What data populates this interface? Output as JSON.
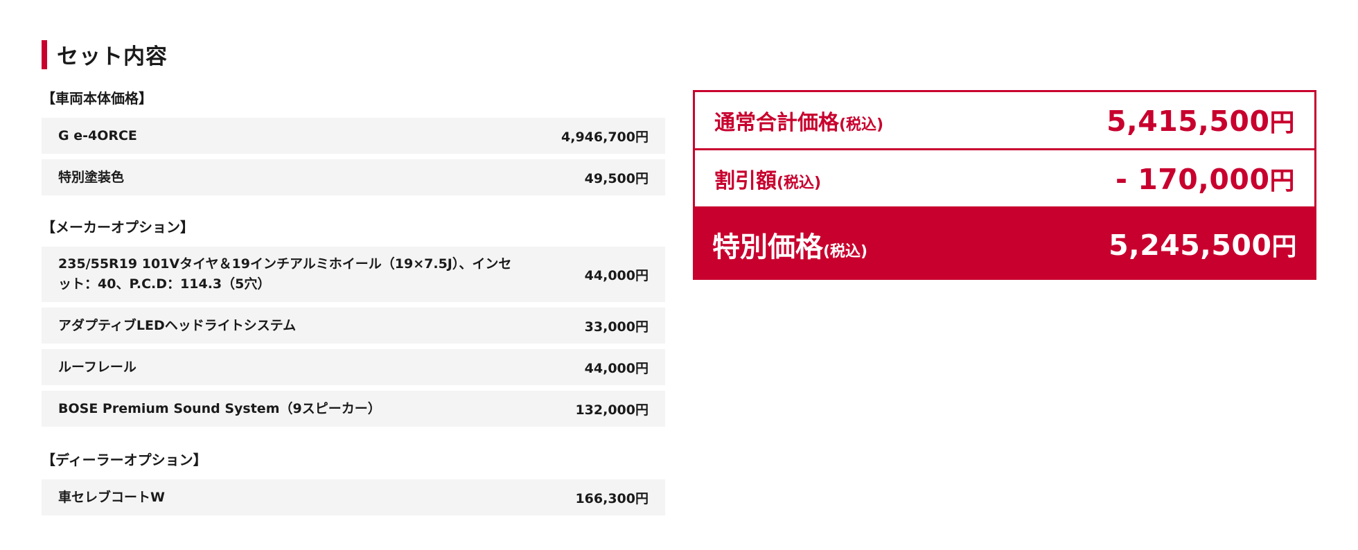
{
  "heading": {
    "title": "セット内容"
  },
  "sections": {
    "body": {
      "label": "【車両本体価格】",
      "items": [
        {
          "name": "G e-4ORCE",
          "price": "4,946,700円"
        },
        {
          "name": "特別塗装色",
          "price": "49,500円"
        }
      ]
    },
    "maker": {
      "label": "【メーカーオプション】",
      "items": [
        {
          "name": "235/55R19 101Vタイヤ＆19インチアルミホイール（19×7.5J）、インセット：40、P.C.D：114.3（5穴）",
          "price": "44,000円"
        },
        {
          "name": "アダプティブLEDヘッドライトシステム",
          "price": "33,000円"
        },
        {
          "name": "ルーフレール",
          "price": "44,000円"
        },
        {
          "name": "BOSE Premium Sound System（9スピーカー）",
          "price": "132,000円"
        }
      ]
    },
    "dealer": {
      "label": "【ディーラーオプション】",
      "items": [
        {
          "name": "車セレブコートW",
          "price": "166,300円"
        }
      ]
    }
  },
  "summary": {
    "regular": {
      "label": "通常合計価格",
      "tax": "(税込)",
      "value": "5,415,500",
      "unit": "円"
    },
    "discount": {
      "label": "割引額",
      "tax": "(税込)",
      "value": "- 170,000",
      "unit": "円"
    },
    "special": {
      "label": "特別価格",
      "tax": "(税込)",
      "value": "5,245,500",
      "unit": "円"
    }
  },
  "colors": {
    "accent": "#c8002e",
    "row_bg": "#f4f4f4",
    "text": "#1a1a1a"
  }
}
